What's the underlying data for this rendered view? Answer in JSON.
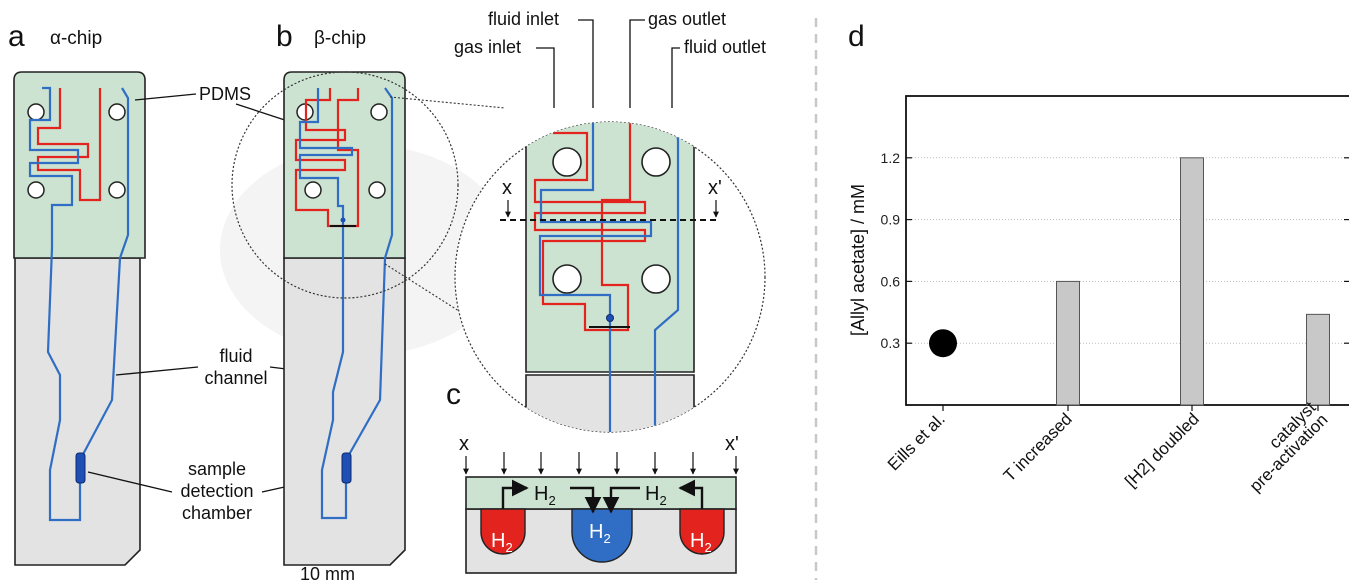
{
  "panels": {
    "a": {
      "letter": "a",
      "title": "α-chip"
    },
    "b": {
      "letter": "b",
      "title": "β-chip"
    },
    "c": {
      "letter": "c"
    },
    "d": {
      "letter": "d"
    }
  },
  "annotations": {
    "pdms": "PDMS",
    "fluid_channel_1": "fluid",
    "fluid_channel_2": "channel",
    "sample_1": "sample",
    "sample_2": "detection",
    "sample_3": "chamber",
    "scale": "10 mm",
    "fluid_inlet": "fluid inlet",
    "gas_inlet": "gas inlet",
    "gas_outlet": "gas outlet",
    "fluid_outlet": "fluid outlet",
    "x": "x",
    "x_prime": "x'",
    "h2": "H",
    "h2_sub": "2"
  },
  "colors": {
    "pdms": "#cde3d1",
    "body": "#e3e3e3",
    "gas_channel": "#e3231e",
    "fluid_channel": "#2f6ec4",
    "chamber": "#1f4fb5",
    "grid": "#999999",
    "bar": "#c8c8c8"
  },
  "chart_data": {
    "type": "bar",
    "title": "",
    "ylabel": "[Allyl acetate] / mM",
    "xlabel": "",
    "ylim": [
      0,
      1.5
    ],
    "yticks": [
      "0.3",
      "0.6",
      "0.9",
      "1.2"
    ],
    "ytick_values": [
      0.3,
      0.6,
      0.9,
      1.2
    ],
    "grid": true,
    "categories": [
      "Eills et al.",
      "T increased",
      "[H2] doubled",
      "catalyst pre-activation"
    ],
    "category_labels": [
      {
        "lines": [
          "Eills et al."
        ]
      },
      {
        "lines": [
          "T increased"
        ]
      },
      {
        "lines": [
          "[H2] doubled"
        ]
      },
      {
        "lines": [
          "catalyst",
          "pre-activation"
        ]
      }
    ],
    "values": [
      0.3,
      0.6,
      1.2,
      0.44
    ],
    "markers": [
      "point",
      "bar",
      "bar",
      "bar"
    ]
  }
}
